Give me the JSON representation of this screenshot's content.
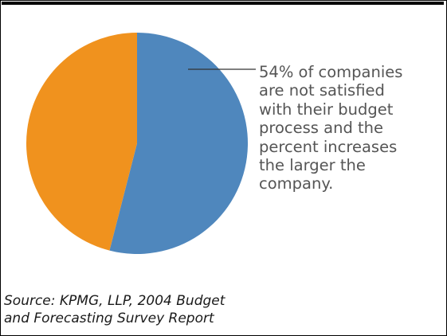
{
  "chart_data": {
    "type": "pie",
    "slices": [
      {
        "label": "not satisfied",
        "value": 54,
        "color": "#4f87bd"
      },
      {
        "label": "",
        "value": 46,
        "color": "#f0921e"
      }
    ],
    "legend": "none",
    "annotation_lines": [
      "54% of companies",
      "are not satisfied",
      "with their budget",
      "process and the",
      "percent increases",
      "the larger the",
      "company."
    ]
  },
  "source_lines": [
    "Source:  KPMG, LLP, 2004 Budget",
    "and Forecasting Survey Report"
  ],
  "colors": {
    "blue_slice": "#4f87bd",
    "orange_slice": "#f0921e",
    "annotation_text": "#555555",
    "leader_line": "#333333"
  }
}
